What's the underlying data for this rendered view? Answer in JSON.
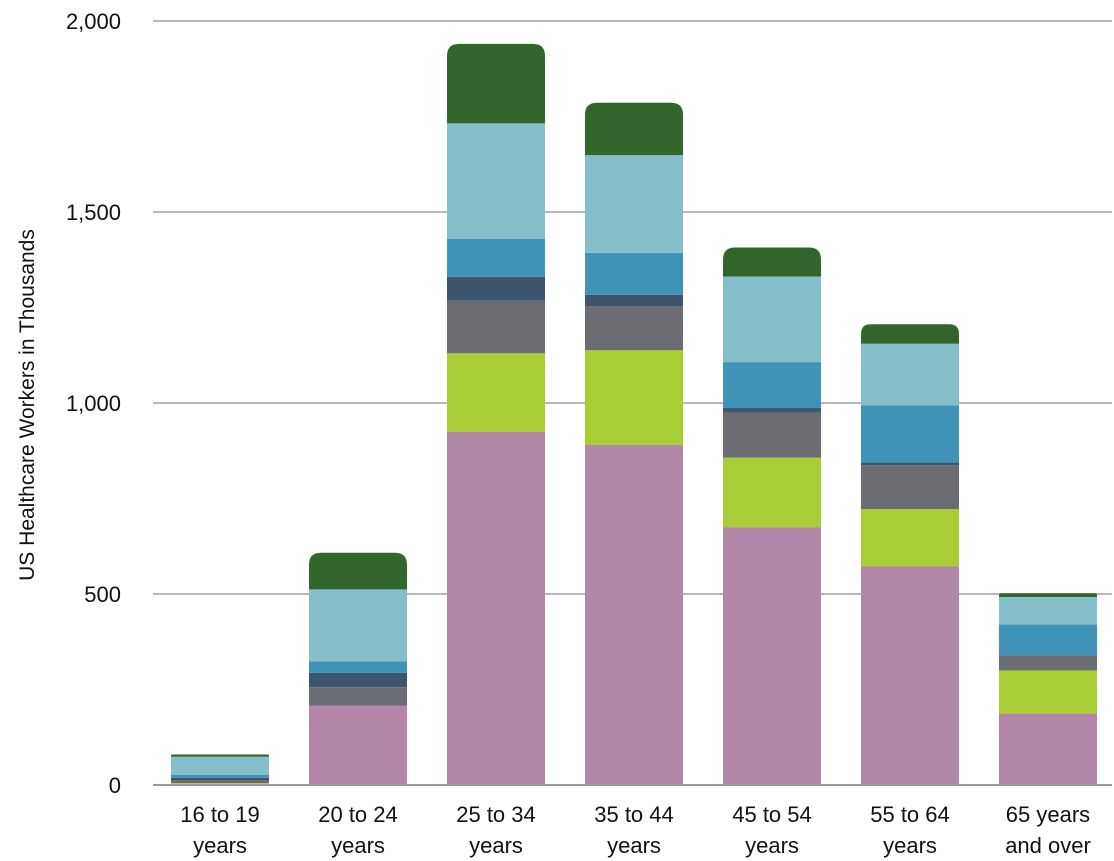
{
  "chart_data": {
    "type": "bar",
    "stacked": true,
    "title": "",
    "xlabel": "",
    "ylabel": "US Healthcare Workers in Thousands",
    "ylim": [
      0,
      2000
    ],
    "yticks": [
      "0",
      "500",
      "1,000",
      "1,500",
      "2,000"
    ],
    "grid": true,
    "legend": "none",
    "categories": [
      [
        "16 to 19",
        "years"
      ],
      [
        "20 to 24",
        "years"
      ],
      [
        "25 to 34",
        "years"
      ],
      [
        "35 to 44",
        "years"
      ],
      [
        "45 to 54",
        "years"
      ],
      [
        "55 to 64",
        "years"
      ],
      [
        "65 years",
        "and over"
      ]
    ],
    "series": [
      {
        "color": "#b286a6",
        "values": [
          3,
          208,
          925,
          890,
          675,
          572,
          187
        ]
      },
      {
        "color": "#a9cd35",
        "values": [
          2,
          0,
          205,
          248,
          182,
          150,
          113
        ]
      },
      {
        "color": "#6b6d72",
        "values": [
          8,
          48,
          138,
          115,
          118,
          115,
          40
        ]
      },
      {
        "color": "#3d566e",
        "values": [
          6,
          38,
          62,
          30,
          12,
          7,
          0
        ]
      },
      {
        "color": "#3f93b6",
        "values": [
          8,
          30,
          100,
          110,
          120,
          150,
          80
        ]
      },
      {
        "color": "#84bfc9",
        "values": [
          47,
          188,
          302,
          256,
          224,
          161,
          72
        ]
      },
      {
        "color": "#33662c",
        "values": [
          6,
          96,
          208,
          137,
          76,
          51,
          10
        ]
      }
    ]
  }
}
